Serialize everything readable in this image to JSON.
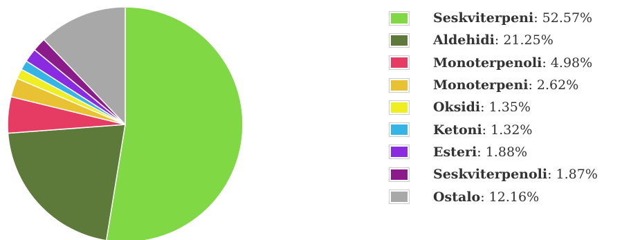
{
  "chart_data": {
    "type": "pie",
    "title": "",
    "legend_position": "right",
    "slices": [
      {
        "label": "Seskviterpeni",
        "value": 52.57,
        "display": "52.57%",
        "color": "#7fd844"
      },
      {
        "label": "Aldehidi",
        "value": 21.25,
        "display": "21.25%",
        "color": "#5d7a3b"
      },
      {
        "label": "Monoterpenoli",
        "value": 4.98,
        "display": "4.98%",
        "color": "#e63c63"
      },
      {
        "label": "Monoterpeni",
        "value": 2.62,
        "display": "2.62%",
        "color": "#e9c234"
      },
      {
        "label": "Oksidi",
        "value": 1.35,
        "display": "1.35%",
        "color": "#eeee22"
      },
      {
        "label": "Ketoni",
        "value": 1.32,
        "display": "1.32%",
        "color": "#35b5e5"
      },
      {
        "label": "Esteri",
        "value": 1.88,
        "display": "1.88%",
        "color": "#8a2be2"
      },
      {
        "label": "Seskviterpenoli",
        "value": 1.87,
        "display": "1.87%",
        "color": "#8b1a8b"
      },
      {
        "label": "Ostalo",
        "value": 12.16,
        "display": "12.16%",
        "color": "#a8a8a8"
      }
    ]
  }
}
